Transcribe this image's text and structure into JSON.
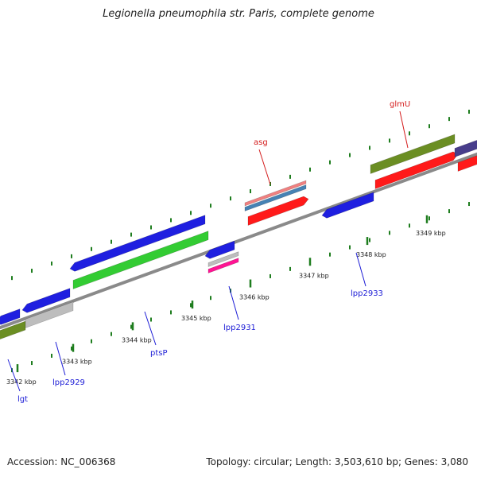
{
  "title": "Legionella pneumophila str. Paris, complete genome",
  "footer": {
    "accession": "Accession: NC_006368",
    "topology": "Topology: circular;",
    "length": "Length: 3,503,610 bp;",
    "genes": "Genes: 3,080"
  },
  "colors": {
    "backbone": "#8a8a8a",
    "tick": "#1e7d1e",
    "blue": "#1f1fe0",
    "green": "#33cc33",
    "olive": "#6b8e23",
    "red": "#ff1a1a",
    "gray": "#bdbdbd",
    "pink": "#ff1493",
    "light_pink": "#f08080",
    "steel": "#4682b4",
    "purple": "#483d8b",
    "gene_label_blue": "#1c1cd6",
    "gene_label_red": "#d41c1c"
  },
  "scale": {
    "ticks": [
      {
        "kbp": 3342,
        "label": "3342 kbp"
      },
      {
        "kbp": 3343,
        "label": "3343 kbp"
      },
      {
        "kbp": 3344,
        "label": "3344 kbp"
      },
      {
        "kbp": 3345,
        "label": "3345 kbp"
      },
      {
        "kbp": 3346,
        "label": "3346 kbp"
      },
      {
        "kbp": 3347,
        "label": "3347 kbp"
      },
      {
        "kbp": 3348,
        "label": "3348 kbp"
      },
      {
        "kbp": 3349,
        "label": "3349 kbp"
      }
    ]
  },
  "features": [
    {
      "name": "lgt",
      "color": "blue",
      "strand": "reverse",
      "ring": 1
    },
    {
      "name": "lpp2929",
      "color": "blue",
      "strand": "reverse",
      "ring": 1
    },
    {
      "name": "ptsP",
      "color": "blue",
      "strand": "reverse",
      "ring": 1
    },
    {
      "name": "lpp2931",
      "color": "blue",
      "strand": "reverse",
      "ring": 1
    },
    {
      "name": "lpp2933",
      "color": "blue",
      "strand": "reverse",
      "ring": 1
    },
    {
      "name": "asg",
      "color": "red",
      "strand": "forward",
      "ring": 1
    },
    {
      "name": "glmU",
      "color": "red",
      "strand": "forward",
      "ring": 1
    }
  ],
  "gene_labels": [
    {
      "text": "lgt",
      "color": "gene_label_blue"
    },
    {
      "text": "lpp2929",
      "color": "gene_label_blue"
    },
    {
      "text": "ptsP",
      "color": "gene_label_blue"
    },
    {
      "text": "lpp2931",
      "color": "gene_label_blue"
    },
    {
      "text": "lpp2933",
      "color": "gene_label_blue"
    },
    {
      "text": "asg",
      "color": "gene_label_red"
    },
    {
      "text": "glmU",
      "color": "gene_label_red"
    }
  ]
}
